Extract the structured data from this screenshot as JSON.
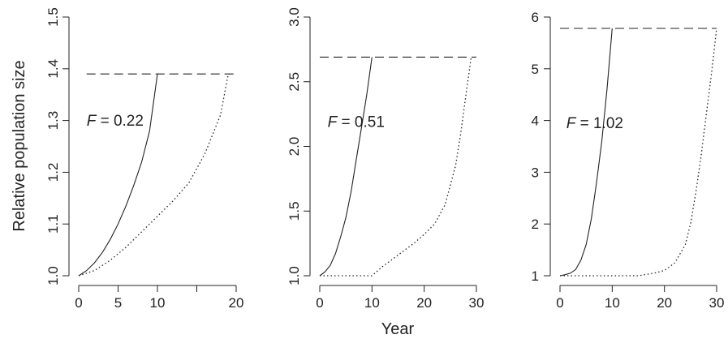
{
  "figure": {
    "ylabel": "Relative population size",
    "xlabel": "Year"
  },
  "chart_data": [
    {
      "type": "line",
      "annotation": {
        "variable": "F",
        "text": " = 0.22",
        "x": 1,
        "y": 1.29
      },
      "xlim": [
        0,
        20
      ],
      "ylim": [
        1.0,
        1.5
      ],
      "xticks": [
        0,
        5,
        10,
        15,
        20
      ],
      "xtick_labels": [
        "0",
        "5",
        "10",
        "",
        "20"
      ],
      "yticks": [
        1.0,
        1.1,
        1.2,
        1.3,
        1.4,
        1.5
      ],
      "ytick_labels": [
        "1.0",
        "1.1",
        "1.2",
        "1.3",
        "1.4",
        "1.5"
      ],
      "ytick_rotated": true,
      "series": [
        {
          "style": "solid",
          "x": [
            0,
            1,
            2,
            3,
            4,
            5,
            6,
            7,
            8,
            9,
            10
          ],
          "y": [
            1.0,
            1.01,
            1.025,
            1.045,
            1.07,
            1.1,
            1.135,
            1.175,
            1.22,
            1.28,
            1.39
          ]
        },
        {
          "style": "dotted",
          "x": [
            0,
            2,
            4,
            6,
            8,
            10,
            12,
            14,
            16,
            18,
            19
          ],
          "y": [
            1.0,
            1.01,
            1.03,
            1.055,
            1.085,
            1.115,
            1.145,
            1.18,
            1.235,
            1.31,
            1.39
          ]
        },
        {
          "style": "dashed",
          "x": [
            1,
            20
          ],
          "y": [
            1.39,
            1.39
          ]
        }
      ]
    },
    {
      "type": "line",
      "annotation": {
        "variable": "F",
        "text": " = 0.51",
        "x": 1.5,
        "y": 2.15
      },
      "xlim": [
        0,
        30
      ],
      "ylim": [
        1.0,
        3.0
      ],
      "xticks": [
        0,
        10,
        20,
        30
      ],
      "xtick_labels": [
        "0",
        "10",
        "20",
        "30"
      ],
      "yticks": [
        1.0,
        1.5,
        2.0,
        2.5,
        3.0
      ],
      "ytick_labels": [
        "1.0",
        "1.5",
        "2.0",
        "2.5",
        "3.0"
      ],
      "ytick_rotated": true,
      "series": [
        {
          "style": "solid",
          "x": [
            0,
            1,
            2,
            3,
            4,
            5,
            6,
            7,
            8,
            9,
            10
          ],
          "y": [
            1.0,
            1.03,
            1.08,
            1.17,
            1.3,
            1.45,
            1.65,
            1.9,
            2.15,
            2.4,
            2.69
          ]
        },
        {
          "style": "dotted",
          "x": [
            0,
            5,
            10,
            12,
            14,
            16,
            18,
            20,
            22,
            24,
            26,
            27,
            28,
            29
          ],
          "y": [
            1.0,
            1.0,
            1.0,
            1.07,
            1.13,
            1.19,
            1.25,
            1.32,
            1.4,
            1.55,
            1.85,
            2.1,
            2.4,
            2.69
          ]
        },
        {
          "style": "dashed",
          "x": [
            0,
            30
          ],
          "y": [
            2.69,
            2.69
          ]
        }
      ]
    },
    {
      "type": "line",
      "annotation": {
        "variable": "F",
        "text": " = 1.02",
        "x": 1.2,
        "y": 3.85
      },
      "xlim": [
        0,
        30
      ],
      "ylim": [
        1,
        6
      ],
      "xticks": [
        0,
        10,
        20,
        30
      ],
      "xtick_labels": [
        "0",
        "10",
        "20",
        "30"
      ],
      "yticks": [
        1,
        2,
        3,
        4,
        5,
        6
      ],
      "ytick_labels": [
        "1",
        "2",
        "3",
        "4",
        "5",
        "6"
      ],
      "ytick_rotated": false,
      "series": [
        {
          "style": "solid",
          "x": [
            0,
            1,
            2,
            3,
            4,
            5,
            6,
            7,
            8,
            9,
            10
          ],
          "y": [
            1.0,
            1.02,
            1.05,
            1.12,
            1.3,
            1.6,
            2.1,
            2.8,
            3.6,
            4.6,
            5.78
          ]
        },
        {
          "style": "dotted",
          "x": [
            0,
            5,
            10,
            15,
            18,
            20,
            22,
            24,
            25,
            26,
            27,
            28,
            29,
            30
          ],
          "y": [
            1.0,
            1.0,
            1.0,
            1.0,
            1.05,
            1.1,
            1.25,
            1.6,
            2.0,
            2.6,
            3.3,
            4.1,
            4.9,
            5.78
          ]
        },
        {
          "style": "dashed",
          "x": [
            0,
            30
          ],
          "y": [
            5.78,
            5.78
          ]
        }
      ]
    }
  ]
}
